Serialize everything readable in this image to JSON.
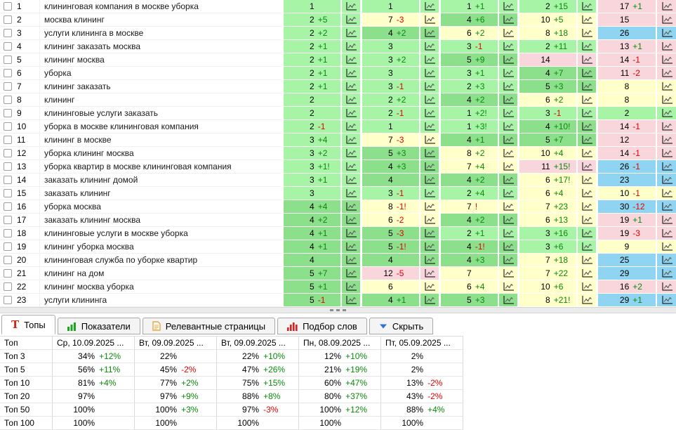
{
  "colors": {
    "top1_3": "#a7f4a7",
    "top4_5": "#8ce08c",
    "top6_10": "#ffffc9",
    "top11_20": "#f9d5dc",
    "top21_30": "#8fd5f2",
    "change_up": "#0a8a0a",
    "change_down": "#e60000",
    "tab_t_icon": "#dd2413",
    "metrics_icon": "#1ea51e",
    "pages_icon": "#f0a43c",
    "words_icon": "#e02020",
    "hide_icon": "#2f73d8"
  },
  "keywords_table": {
    "rows": [
      {
        "num": "1",
        "keyword": "клининговая компания в москве уборка",
        "cells": [
          {
            "v": "1",
            "d": ""
          },
          {
            "v": "1",
            "d": ""
          },
          {
            "v": "1",
            "d": "+1"
          },
          {
            "v": "2",
            "d": "+15"
          },
          {
            "v": "17",
            "d": "+1"
          }
        ]
      },
      {
        "num": "2",
        "keyword": "москва клининг",
        "cells": [
          {
            "v": "2",
            "d": "+5"
          },
          {
            "v": "7",
            "d": "-3"
          },
          {
            "v": "4",
            "d": "+6"
          },
          {
            "v": "10",
            "d": "+5"
          },
          {
            "v": "15",
            "d": ""
          }
        ]
      },
      {
        "num": "3",
        "keyword": "услуги клининга в москве",
        "cells": [
          {
            "v": "2",
            "d": "+2"
          },
          {
            "v": "4",
            "d": "+2"
          },
          {
            "v": "6",
            "d": "+2"
          },
          {
            "v": "8",
            "d": "+18"
          },
          {
            "v": "26",
            "d": ""
          }
        ]
      },
      {
        "num": "4",
        "keyword": "клининг заказать москва",
        "cells": [
          {
            "v": "2",
            "d": "+1"
          },
          {
            "v": "3",
            "d": ""
          },
          {
            "v": "3",
            "d": "-1"
          },
          {
            "v": "2",
            "d": "+11"
          },
          {
            "v": "13",
            "d": "+1"
          }
        ]
      },
      {
        "num": "5",
        "keyword": "клининг москва",
        "cells": [
          {
            "v": "2",
            "d": "+1"
          },
          {
            "v": "3",
            "d": "+2"
          },
          {
            "v": "5",
            "d": "+9"
          },
          {
            "v": "14",
            "d": ""
          },
          {
            "v": "14",
            "d": "-1"
          }
        ]
      },
      {
        "num": "6",
        "keyword": "уборка",
        "cells": [
          {
            "v": "2",
            "d": "+1"
          },
          {
            "v": "3",
            "d": ""
          },
          {
            "v": "3",
            "d": "+1"
          },
          {
            "v": "4",
            "d": "+7"
          },
          {
            "v": "11",
            "d": "-2"
          }
        ]
      },
      {
        "num": "7",
        "keyword": "клининг заказать",
        "cells": [
          {
            "v": "2",
            "d": "+1"
          },
          {
            "v": "3",
            "d": "-1"
          },
          {
            "v": "2",
            "d": "+3"
          },
          {
            "v": "5",
            "d": "+3"
          },
          {
            "v": "8",
            "d": ""
          }
        ]
      },
      {
        "num": "8",
        "keyword": "клининг",
        "cells": [
          {
            "v": "2",
            "d": ""
          },
          {
            "v": "2",
            "d": "+2"
          },
          {
            "v": "4",
            "d": "+2"
          },
          {
            "v": "6",
            "d": "+2"
          },
          {
            "v": "8",
            "d": ""
          }
        ]
      },
      {
        "num": "9",
        "keyword": "клининговые услуги заказать",
        "cells": [
          {
            "v": "2",
            "d": ""
          },
          {
            "v": "2",
            "d": "-1"
          },
          {
            "v": "1",
            "d": "+2!"
          },
          {
            "v": "3",
            "d": "-1"
          },
          {
            "v": "2",
            "d": ""
          }
        ]
      },
      {
        "num": "10",
        "keyword": "уборка в москве клининговая компания",
        "cells": [
          {
            "v": "2",
            "d": "-1"
          },
          {
            "v": "1",
            "d": ""
          },
          {
            "v": "1",
            "d": "+3!"
          },
          {
            "v": "4",
            "d": "+10!"
          },
          {
            "v": "14",
            "d": "-1"
          }
        ]
      },
      {
        "num": "11",
        "keyword": "клининг в москве",
        "cells": [
          {
            "v": "3",
            "d": "+4"
          },
          {
            "v": "7",
            "d": "-3"
          },
          {
            "v": "4",
            "d": "+1"
          },
          {
            "v": "5",
            "d": "+7"
          },
          {
            "v": "12",
            "d": ""
          }
        ]
      },
      {
        "num": "12",
        "keyword": "уборка клининг москва",
        "cells": [
          {
            "v": "3",
            "d": "+2"
          },
          {
            "v": "5",
            "d": "+3"
          },
          {
            "v": "8",
            "d": "+2"
          },
          {
            "v": "10",
            "d": "+4"
          },
          {
            "v": "14",
            "d": "-1"
          }
        ]
      },
      {
        "num": "13",
        "keyword": "уборка квартир в москве клининговая компания",
        "cells": [
          {
            "v": "3",
            "d": "+1!"
          },
          {
            "v": "4",
            "d": "+3"
          },
          {
            "v": "7",
            "d": "+4"
          },
          {
            "v": "11",
            "d": "+15!"
          },
          {
            "v": "26",
            "d": "-1"
          }
        ]
      },
      {
        "num": "14",
        "keyword": "заказать клининг домой",
        "cells": [
          {
            "v": "3",
            "d": "+1"
          },
          {
            "v": "4",
            "d": ""
          },
          {
            "v": "4",
            "d": "+2"
          },
          {
            "v": "6",
            "d": "+17!"
          },
          {
            "v": "23",
            "d": ""
          }
        ]
      },
      {
        "num": "15",
        "keyword": "заказать клининг",
        "cells": [
          {
            "v": "3",
            "d": ""
          },
          {
            "v": "3",
            "d": "-1"
          },
          {
            "v": "2",
            "d": "+4"
          },
          {
            "v": "6",
            "d": "+4"
          },
          {
            "v": "10",
            "d": "-1"
          }
        ]
      },
      {
        "num": "16",
        "keyword": "уборка москва",
        "cells": [
          {
            "v": "4",
            "d": "+4"
          },
          {
            "v": "8",
            "d": "-1!"
          },
          {
            "v": "7",
            "d": "!"
          },
          {
            "v": "7",
            "d": "+23"
          },
          {
            "v": "30",
            "d": "-12"
          }
        ]
      },
      {
        "num": "17",
        "keyword": "заказать клининг москва",
        "cells": [
          {
            "v": "4",
            "d": "+2"
          },
          {
            "v": "6",
            "d": "-2"
          },
          {
            "v": "4",
            "d": "+2"
          },
          {
            "v": "6",
            "d": "+13"
          },
          {
            "v": "19",
            "d": "+1"
          }
        ]
      },
      {
        "num": "18",
        "keyword": "клининговые услуги в москве уборка",
        "cells": [
          {
            "v": "4",
            "d": "+1"
          },
          {
            "v": "5",
            "d": "-3"
          },
          {
            "v": "2",
            "d": "+1"
          },
          {
            "v": "3",
            "d": "+16"
          },
          {
            "v": "19",
            "d": "-3"
          }
        ]
      },
      {
        "num": "19",
        "keyword": "клининг уборка москва",
        "cells": [
          {
            "v": "4",
            "d": "+1"
          },
          {
            "v": "5",
            "d": "-1!"
          },
          {
            "v": "4",
            "d": "-1!"
          },
          {
            "v": "3",
            "d": "+6"
          },
          {
            "v": "9",
            "d": ""
          }
        ]
      },
      {
        "num": "20",
        "keyword": "клининговая служба по уборке квартир",
        "cells": [
          {
            "v": "4",
            "d": ""
          },
          {
            "v": "4",
            "d": ""
          },
          {
            "v": "4",
            "d": "+3"
          },
          {
            "v": "7",
            "d": "+18"
          },
          {
            "v": "25",
            "d": ""
          }
        ]
      },
      {
        "num": "21",
        "keyword": "клининг на дом",
        "cells": [
          {
            "v": "5",
            "d": "+7"
          },
          {
            "v": "12",
            "d": "-5"
          },
          {
            "v": "7",
            "d": ""
          },
          {
            "v": "7",
            "d": "+22"
          },
          {
            "v": "29",
            "d": ""
          }
        ]
      },
      {
        "num": "22",
        "keyword": "клининг москва уборка",
        "cells": [
          {
            "v": "5",
            "d": "+1"
          },
          {
            "v": "6",
            "d": ""
          },
          {
            "v": "6",
            "d": "+4"
          },
          {
            "v": "10",
            "d": "+6"
          },
          {
            "v": "16",
            "d": "+2"
          }
        ]
      },
      {
        "num": "23",
        "keyword": "услуги клининга",
        "cells": [
          {
            "v": "5",
            "d": "-1"
          },
          {
            "v": "4",
            "d": "+1"
          },
          {
            "v": "5",
            "d": "+3"
          },
          {
            "v": "8",
            "d": "+21!"
          },
          {
            "v": "29",
            "d": "+1"
          }
        ]
      }
    ]
  },
  "tabs": [
    {
      "label": "Топы",
      "icon": "tops-tab-icon",
      "active": true
    },
    {
      "label": "Показатели",
      "icon": "metrics-tab-icon",
      "active": false
    },
    {
      "label": "Релевантные страницы",
      "icon": "pages-tab-icon",
      "active": false
    },
    {
      "label": "Подбор слов",
      "icon": "words-tab-icon",
      "active": false
    },
    {
      "label": "Скрыть",
      "icon": "hide-tab-icon",
      "active": false
    }
  ],
  "tops_table": {
    "headers": [
      "Топ",
      "Ср, 10.09.2025 ...",
      "Вт, 09.09.2025 ...",
      "Вт, 09.09.2025 ...",
      "Пн, 08.09.2025 ...",
      "Пт, 05.09.2025 ..."
    ],
    "rows": [
      {
        "label": "Топ 3",
        "cells": [
          {
            "v": "34%",
            "d": "+12%"
          },
          {
            "v": "22%",
            "d": ""
          },
          {
            "v": "22%",
            "d": "+10%"
          },
          {
            "v": "12%",
            "d": "+10%"
          },
          {
            "v": "2%",
            "d": ""
          }
        ]
      },
      {
        "label": "Топ 5",
        "cells": [
          {
            "v": "56%",
            "d": "+11%"
          },
          {
            "v": "45%",
            "d": "-2%"
          },
          {
            "v": "47%",
            "d": "+26%"
          },
          {
            "v": "21%",
            "d": "+19%"
          },
          {
            "v": "2%",
            "d": ""
          }
        ]
      },
      {
        "label": "Топ 10",
        "cells": [
          {
            "v": "81%",
            "d": "+4%"
          },
          {
            "v": "77%",
            "d": "+2%"
          },
          {
            "v": "75%",
            "d": "+15%"
          },
          {
            "v": "60%",
            "d": "+47%"
          },
          {
            "v": "13%",
            "d": "-2%"
          }
        ]
      },
      {
        "label": "Топ 20",
        "cells": [
          {
            "v": "97%",
            "d": ""
          },
          {
            "v": "97%",
            "d": "+9%"
          },
          {
            "v": "88%",
            "d": "+8%"
          },
          {
            "v": "80%",
            "d": "+37%"
          },
          {
            "v": "43%",
            "d": "-2%"
          }
        ]
      },
      {
        "label": "Топ 50",
        "cells": [
          {
            "v": "100%",
            "d": ""
          },
          {
            "v": "100%",
            "d": "+3%"
          },
          {
            "v": "97%",
            "d": "-3%"
          },
          {
            "v": "100%",
            "d": "+12%"
          },
          {
            "v": "88%",
            "d": "+4%"
          }
        ]
      },
      {
        "label": "Топ 100",
        "cells": [
          {
            "v": "100%",
            "d": ""
          },
          {
            "v": "100%",
            "d": ""
          },
          {
            "v": "100%",
            "d": ""
          },
          {
            "v": "100%",
            "d": ""
          },
          {
            "v": "100%",
            "d": ""
          }
        ]
      }
    ]
  }
}
